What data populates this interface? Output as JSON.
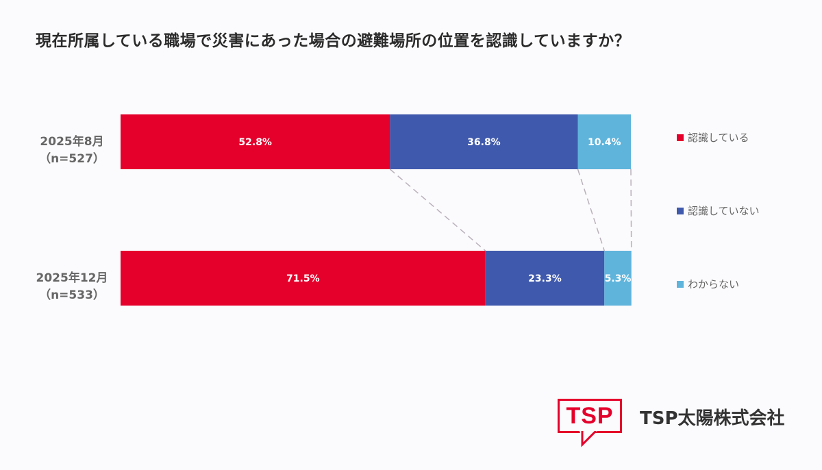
{
  "chart_data": {
    "type": "bar",
    "orientation": "horizontal",
    "stacked": true,
    "percent": true,
    "title": "現在所属している職場で災害にあった場合の避難場所の位置を認識していますか？",
    "categories": [
      {
        "label_line1": "2025年8月",
        "label_line2": "（n=527）"
      },
      {
        "label_line1": "2025年12月",
        "label_line2": "（n=533）"
      }
    ],
    "series": [
      {
        "name": "認識している",
        "color": "#e4002b",
        "values": [
          52.8,
          71.5
        ],
        "labels": [
          "52.8%",
          "71.5%"
        ]
      },
      {
        "name": "認識していない",
        "color": "#3f59ac",
        "values": [
          36.8,
          23.3
        ],
        "labels": [
          "36.8%",
          "23.3%"
        ]
      },
      {
        "name": "わからない",
        "color": "#5fb4dc",
        "values": [
          10.4,
          5.3
        ],
        "labels": [
          "10.4%",
          "5.3%"
        ]
      }
    ],
    "legend_position": "right",
    "connector_lines": true
  },
  "branding": {
    "logo_text": "TSP",
    "company_name": "TSP太陽株式会社",
    "accent_color": "#e4002b"
  }
}
